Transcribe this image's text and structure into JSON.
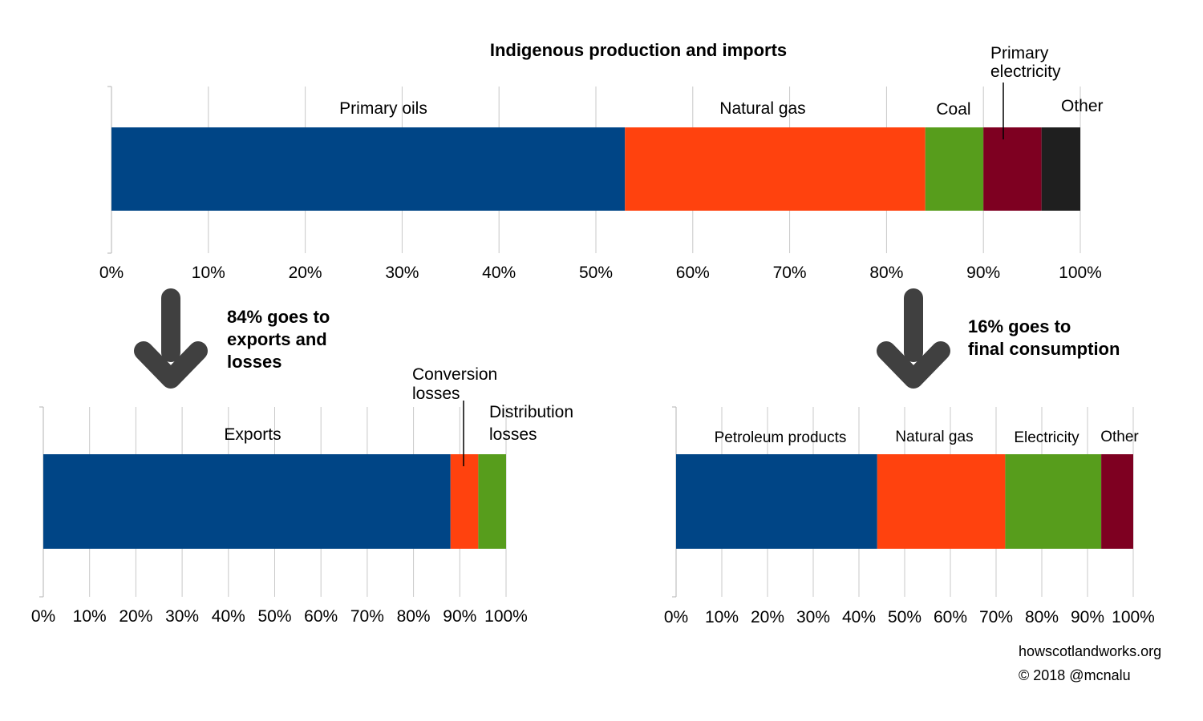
{
  "colors": {
    "blue": "#004586",
    "orange": "#ff420e",
    "green": "#579d1c",
    "maroon": "#7e0021",
    "black": "#1f1f1f",
    "grid": "#c8c8c8",
    "arrow": "#404040"
  },
  "chart_data": [
    {
      "type": "bar",
      "orientation": "horizontal",
      "stacked": true,
      "title": "Indigenous production and imports",
      "xlim": [
        0,
        100
      ],
      "tick_labels": [
        "0%",
        "10%",
        "20%",
        "30%",
        "40%",
        "50%",
        "60%",
        "70%",
        "80%",
        "90%",
        "100%"
      ],
      "grid": true,
      "series": [
        {
          "name": "Primary oils",
          "value": 53,
          "color": "#004586"
        },
        {
          "name": "Natural gas",
          "value": 31,
          "color": "#ff420e"
        },
        {
          "name": "Coal",
          "value": 6,
          "color": "#579d1c"
        },
        {
          "name": "Primary electricity",
          "value": 6,
          "color": "#7e0021"
        },
        {
          "name": "Other",
          "value": 4,
          "color": "#1f1f1f"
        }
      ]
    },
    {
      "type": "bar",
      "orientation": "horizontal",
      "stacked": true,
      "xlim": [
        0,
        100
      ],
      "tick_labels": [
        "0%",
        "10%",
        "20%",
        "30%",
        "40%",
        "50%",
        "60%",
        "70%",
        "80%",
        "90%",
        "100%"
      ],
      "grid": true,
      "series": [
        {
          "name": "Exports",
          "value": 88,
          "color": "#004586"
        },
        {
          "name": "Conversion losses",
          "value": 6,
          "color": "#ff420e"
        },
        {
          "name": "Distribution losses",
          "value": 6,
          "color": "#579d1c"
        }
      ]
    },
    {
      "type": "bar",
      "orientation": "horizontal",
      "stacked": true,
      "xlim": [
        0,
        100
      ],
      "tick_labels": [
        "0%",
        "10%",
        "20%",
        "30%",
        "40%",
        "50%",
        "60%",
        "70%",
        "80%",
        "90%",
        "100%"
      ],
      "grid": true,
      "series": [
        {
          "name": "Petroleum products",
          "value": 44,
          "color": "#004586"
        },
        {
          "name": "Natural gas",
          "value": 28,
          "color": "#ff420e"
        },
        {
          "name": "Electricity",
          "value": 21,
          "color": "#579d1c"
        },
        {
          "name": "Other",
          "value": 7,
          "color": "#7e0021"
        }
      ]
    }
  ],
  "annotations": {
    "left_note": "84% goes to\nexports and\nlosses",
    "right_note": "16% goes to\nfinal consumption"
  },
  "credits": {
    "site": "howscotlandworks.org",
    "copyright": "© 2018  @mcnalu"
  }
}
